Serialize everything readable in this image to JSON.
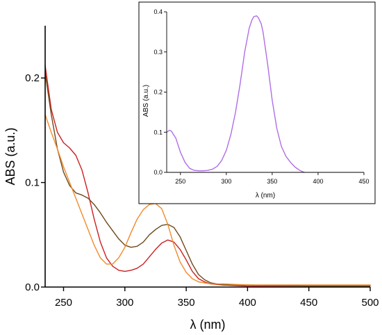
{
  "chart_data": [
    {
      "type": "line",
      "xlabel": "λ (nm)",
      "ylabel": "ABS (a.u.)",
      "xlim": [
        235,
        500
      ],
      "ylim": [
        0,
        0.25
      ],
      "xticks": [
        250,
        300,
        350,
        400,
        450,
        500
      ],
      "yticks": [
        0.0,
        0.1,
        0.2
      ],
      "xtick_labels": [
        "250",
        "300",
        "350",
        "400",
        "450",
        "500"
      ],
      "ytick_labels": [
        "0.0",
        "0.1",
        "0.2"
      ],
      "grid": false,
      "series": [
        {
          "color": "#cc1f1f",
          "x": [
            235,
            240,
            245,
            250,
            255,
            260,
            265,
            270,
            275,
            280,
            285,
            290,
            295,
            300,
            305,
            310,
            315,
            320,
            325,
            330,
            335,
            340,
            345,
            350,
            355,
            360,
            365,
            370,
            380,
            400,
            450,
            500
          ],
          "y": [
            0.212,
            0.17,
            0.148,
            0.138,
            0.133,
            0.126,
            0.112,
            0.09,
            0.065,
            0.043,
            0.028,
            0.02,
            0.016,
            0.015,
            0.016,
            0.018,
            0.022,
            0.029,
            0.036,
            0.042,
            0.045,
            0.043,
            0.036,
            0.026,
            0.015,
            0.008,
            0.005,
            0.003,
            0.002,
            0.001,
            0.001,
            0.001
          ]
        },
        {
          "color": "#6b4a1a",
          "x": [
            235,
            240,
            245,
            250,
            255,
            260,
            265,
            270,
            275,
            280,
            285,
            290,
            295,
            300,
            305,
            310,
            315,
            320,
            325,
            330,
            335,
            340,
            345,
            350,
            355,
            360,
            365,
            370,
            380,
            400,
            450,
            500
          ],
          "y": [
            0.205,
            0.165,
            0.132,
            0.11,
            0.097,
            0.09,
            0.088,
            0.085,
            0.079,
            0.071,
            0.062,
            0.054,
            0.046,
            0.04,
            0.038,
            0.039,
            0.043,
            0.05,
            0.055,
            0.059,
            0.06,
            0.057,
            0.048,
            0.035,
            0.022,
            0.012,
            0.007,
            0.004,
            0.002,
            0.002,
            0.001,
            0.001
          ]
        },
        {
          "color": "#f08a2c",
          "x": [
            235,
            240,
            245,
            250,
            255,
            260,
            265,
            270,
            275,
            280,
            285,
            290,
            295,
            300,
            305,
            310,
            315,
            320,
            325,
            330,
            335,
            340,
            345,
            350,
            355,
            360,
            365,
            370,
            380,
            400,
            450,
            500
          ],
          "y": [
            0.165,
            0.148,
            0.132,
            0.115,
            0.1,
            0.085,
            0.07,
            0.055,
            0.04,
            0.028,
            0.022,
            0.022,
            0.028,
            0.038,
            0.052,
            0.065,
            0.074,
            0.079,
            0.08,
            0.075,
            0.06,
            0.04,
            0.024,
            0.014,
            0.008,
            0.005,
            0.004,
            0.003,
            0.003,
            0.002,
            0.002,
            0.002
          ]
        }
      ]
    },
    {
      "type": "line",
      "xlabel": "λ (nm)",
      "ylabel": "ABS (a.u.)",
      "xlim": [
        235,
        450
      ],
      "ylim": [
        0,
        0.4
      ],
      "xticks": [
        250,
        300,
        350,
        400,
        450
      ],
      "yticks": [
        0.0,
        0.1,
        0.2,
        0.3,
        0.4
      ],
      "xtick_labels": [
        "250",
        "300",
        "350",
        "400",
        "450"
      ],
      "ytick_labels": [
        "0.0",
        "0.1",
        "0.2",
        "0.3",
        "0.4"
      ],
      "grid": false,
      "series": [
        {
          "color": "#b06ee6",
          "x": [
            235,
            238,
            240,
            245,
            250,
            255,
            260,
            265,
            270,
            275,
            280,
            285,
            290,
            295,
            300,
            305,
            310,
            315,
            320,
            325,
            328,
            330,
            333,
            335,
            338,
            340,
            345,
            350,
            355,
            360,
            365,
            370,
            375,
            380,
            385
          ],
          "y": [
            0.1,
            0.105,
            0.103,
            0.085,
            0.05,
            0.025,
            0.01,
            0.005,
            0.004,
            0.004,
            0.005,
            0.008,
            0.015,
            0.03,
            0.055,
            0.095,
            0.15,
            0.22,
            0.3,
            0.36,
            0.38,
            0.388,
            0.39,
            0.385,
            0.37,
            0.35,
            0.27,
            0.18,
            0.11,
            0.065,
            0.04,
            0.025,
            0.013,
            0.005,
            0.0
          ]
        }
      ]
    }
  ]
}
